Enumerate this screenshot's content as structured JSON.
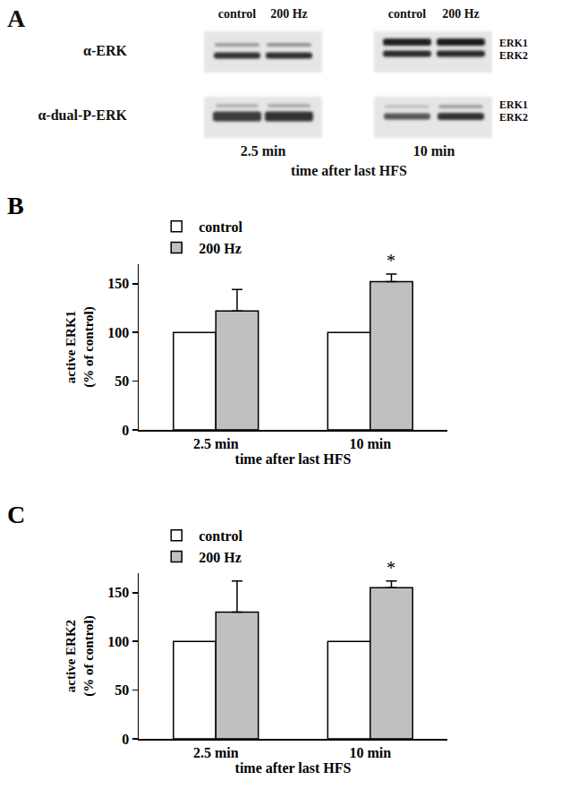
{
  "blot": {
    "label": "A",
    "lanes": [
      "control",
      "200 Hz"
    ],
    "rows": [
      "α-ERK",
      "α-dual-P-ERK"
    ],
    "bands": [
      "ERK1",
      "ERK2"
    ],
    "timepoints": [
      "2.5 min",
      "10 min"
    ],
    "x_label": "time after last HFS"
  },
  "chart_data": [
    {
      "label": "B",
      "type": "bar",
      "categories": [
        "2.5 min",
        "10 min"
      ],
      "series": [
        {
          "name": "control",
          "color": "#ffffff",
          "values": [
            100,
            100
          ]
        },
        {
          "name": "200 Hz",
          "color": "#c0c0c0",
          "values": [
            122,
            152
          ],
          "errors": [
            22,
            8
          ]
        }
      ],
      "x_label": "time after last HFS",
      "y_label": [
        "active ERK1",
        "(% of control)"
      ],
      "ylim": [
        0,
        170
      ],
      "yticks": [
        0,
        50,
        100,
        150
      ],
      "legend": "top left",
      "annotations": [
        {
          "text": "*",
          "category": "10 min",
          "series": "200 Hz"
        }
      ]
    },
    {
      "label": "C",
      "type": "bar",
      "categories": [
        "2.5 min",
        "10 min"
      ],
      "series": [
        {
          "name": "control",
          "color": "#ffffff",
          "values": [
            100,
            100
          ]
        },
        {
          "name": "200 Hz",
          "color": "#c0c0c0",
          "values": [
            130,
            155
          ],
          "errors": [
            32,
            7
          ]
        }
      ],
      "x_label": "time after last HFS",
      "y_label": [
        "active ERK2",
        "(% of control)"
      ],
      "ylim": [
        0,
        170
      ],
      "yticks": [
        0,
        50,
        100,
        150
      ],
      "legend": "top left",
      "annotations": [
        {
          "text": "*",
          "category": "10 min",
          "series": "200 Hz"
        }
      ]
    }
  ]
}
